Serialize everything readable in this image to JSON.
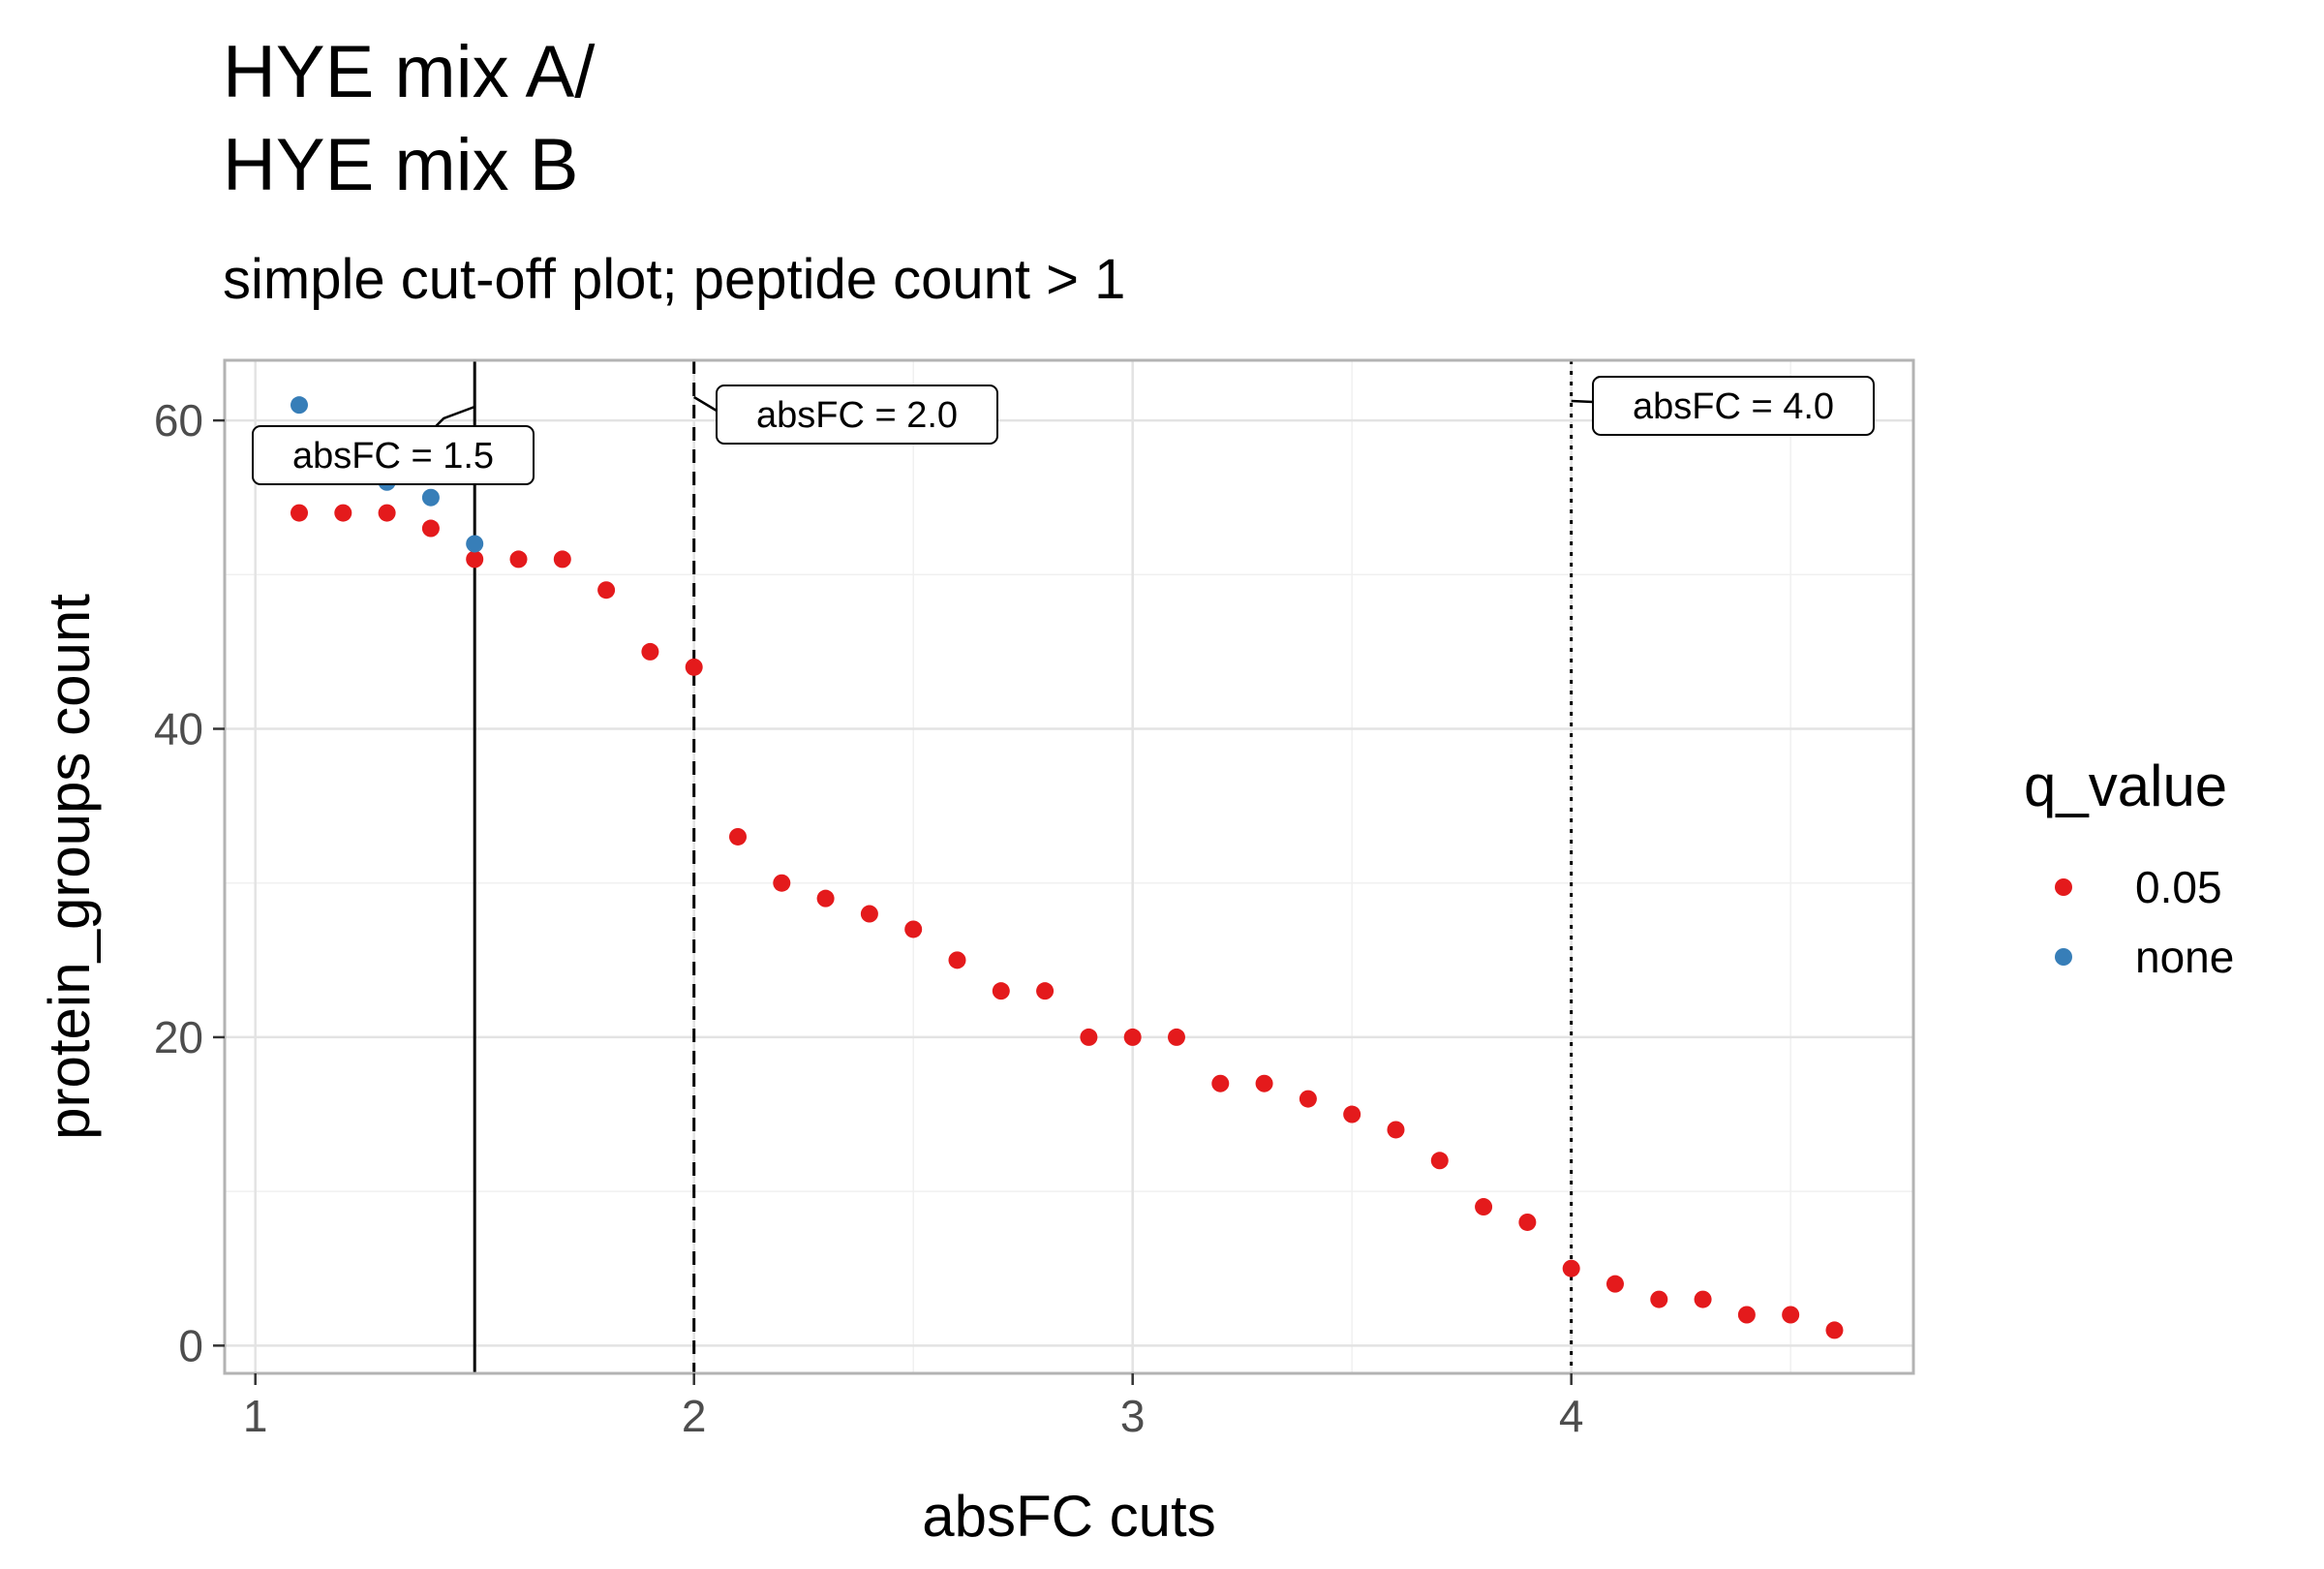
{
  "chart_data": {
    "type": "scatter",
    "title_lines": [
      "HYE mix A/",
      "HYE mix B"
    ],
    "subtitle": "simple cut-off plot; peptide count > 1",
    "xlabel": "absFC cuts",
    "ylabel": "protein_groups count",
    "xlim": [
      0.93,
      4.78
    ],
    "ylim": [
      -1.8,
      63.9
    ],
    "x_ticks": [
      1,
      2,
      3,
      4
    ],
    "y_ticks": [
      0,
      20,
      40,
      60
    ],
    "grid": true,
    "legend": {
      "title": "q_value",
      "position": "right",
      "entries": [
        {
          "label": "0.05",
          "color": "#e41a1c"
        },
        {
          "label": "none",
          "color": "#377eb8"
        }
      ]
    },
    "series": [
      {
        "name": "0.05",
        "color": "#e41a1c",
        "x": [
          1.1,
          1.2,
          1.3,
          1.4,
          1.5,
          1.6,
          1.7,
          1.8,
          1.9,
          2.0,
          2.1,
          2.2,
          2.3,
          2.4,
          2.5,
          2.6,
          2.7,
          2.8,
          2.9,
          3.0,
          3.1,
          3.2,
          3.3,
          3.4,
          3.5,
          3.6,
          3.7,
          3.8,
          3.9,
          4.0,
          4.1,
          4.2,
          4.3,
          4.4,
          4.5,
          4.6
        ],
        "y": [
          54,
          54,
          54,
          53,
          51,
          51,
          51,
          49,
          45,
          44,
          33,
          30,
          29,
          28,
          27,
          25,
          23,
          23,
          20,
          20,
          20,
          17,
          17,
          16,
          15,
          14,
          12,
          9,
          8,
          5,
          4,
          3,
          3,
          2,
          2,
          1
        ]
      },
      {
        "name": "none",
        "color": "#377eb8",
        "x": [
          1.1,
          1.2,
          1.3,
          1.4,
          1.5
        ],
        "y": [
          61,
          59,
          56,
          55,
          52
        ]
      }
    ],
    "vlines": [
      {
        "x": 1.5,
        "style": "solid",
        "label": "absFC = 1.5"
      },
      {
        "x": 2.0,
        "style": "dashed",
        "label": "absFC = 2.0"
      },
      {
        "x": 4.0,
        "style": "dotted",
        "label": "absFC = 4.0"
      }
    ]
  }
}
